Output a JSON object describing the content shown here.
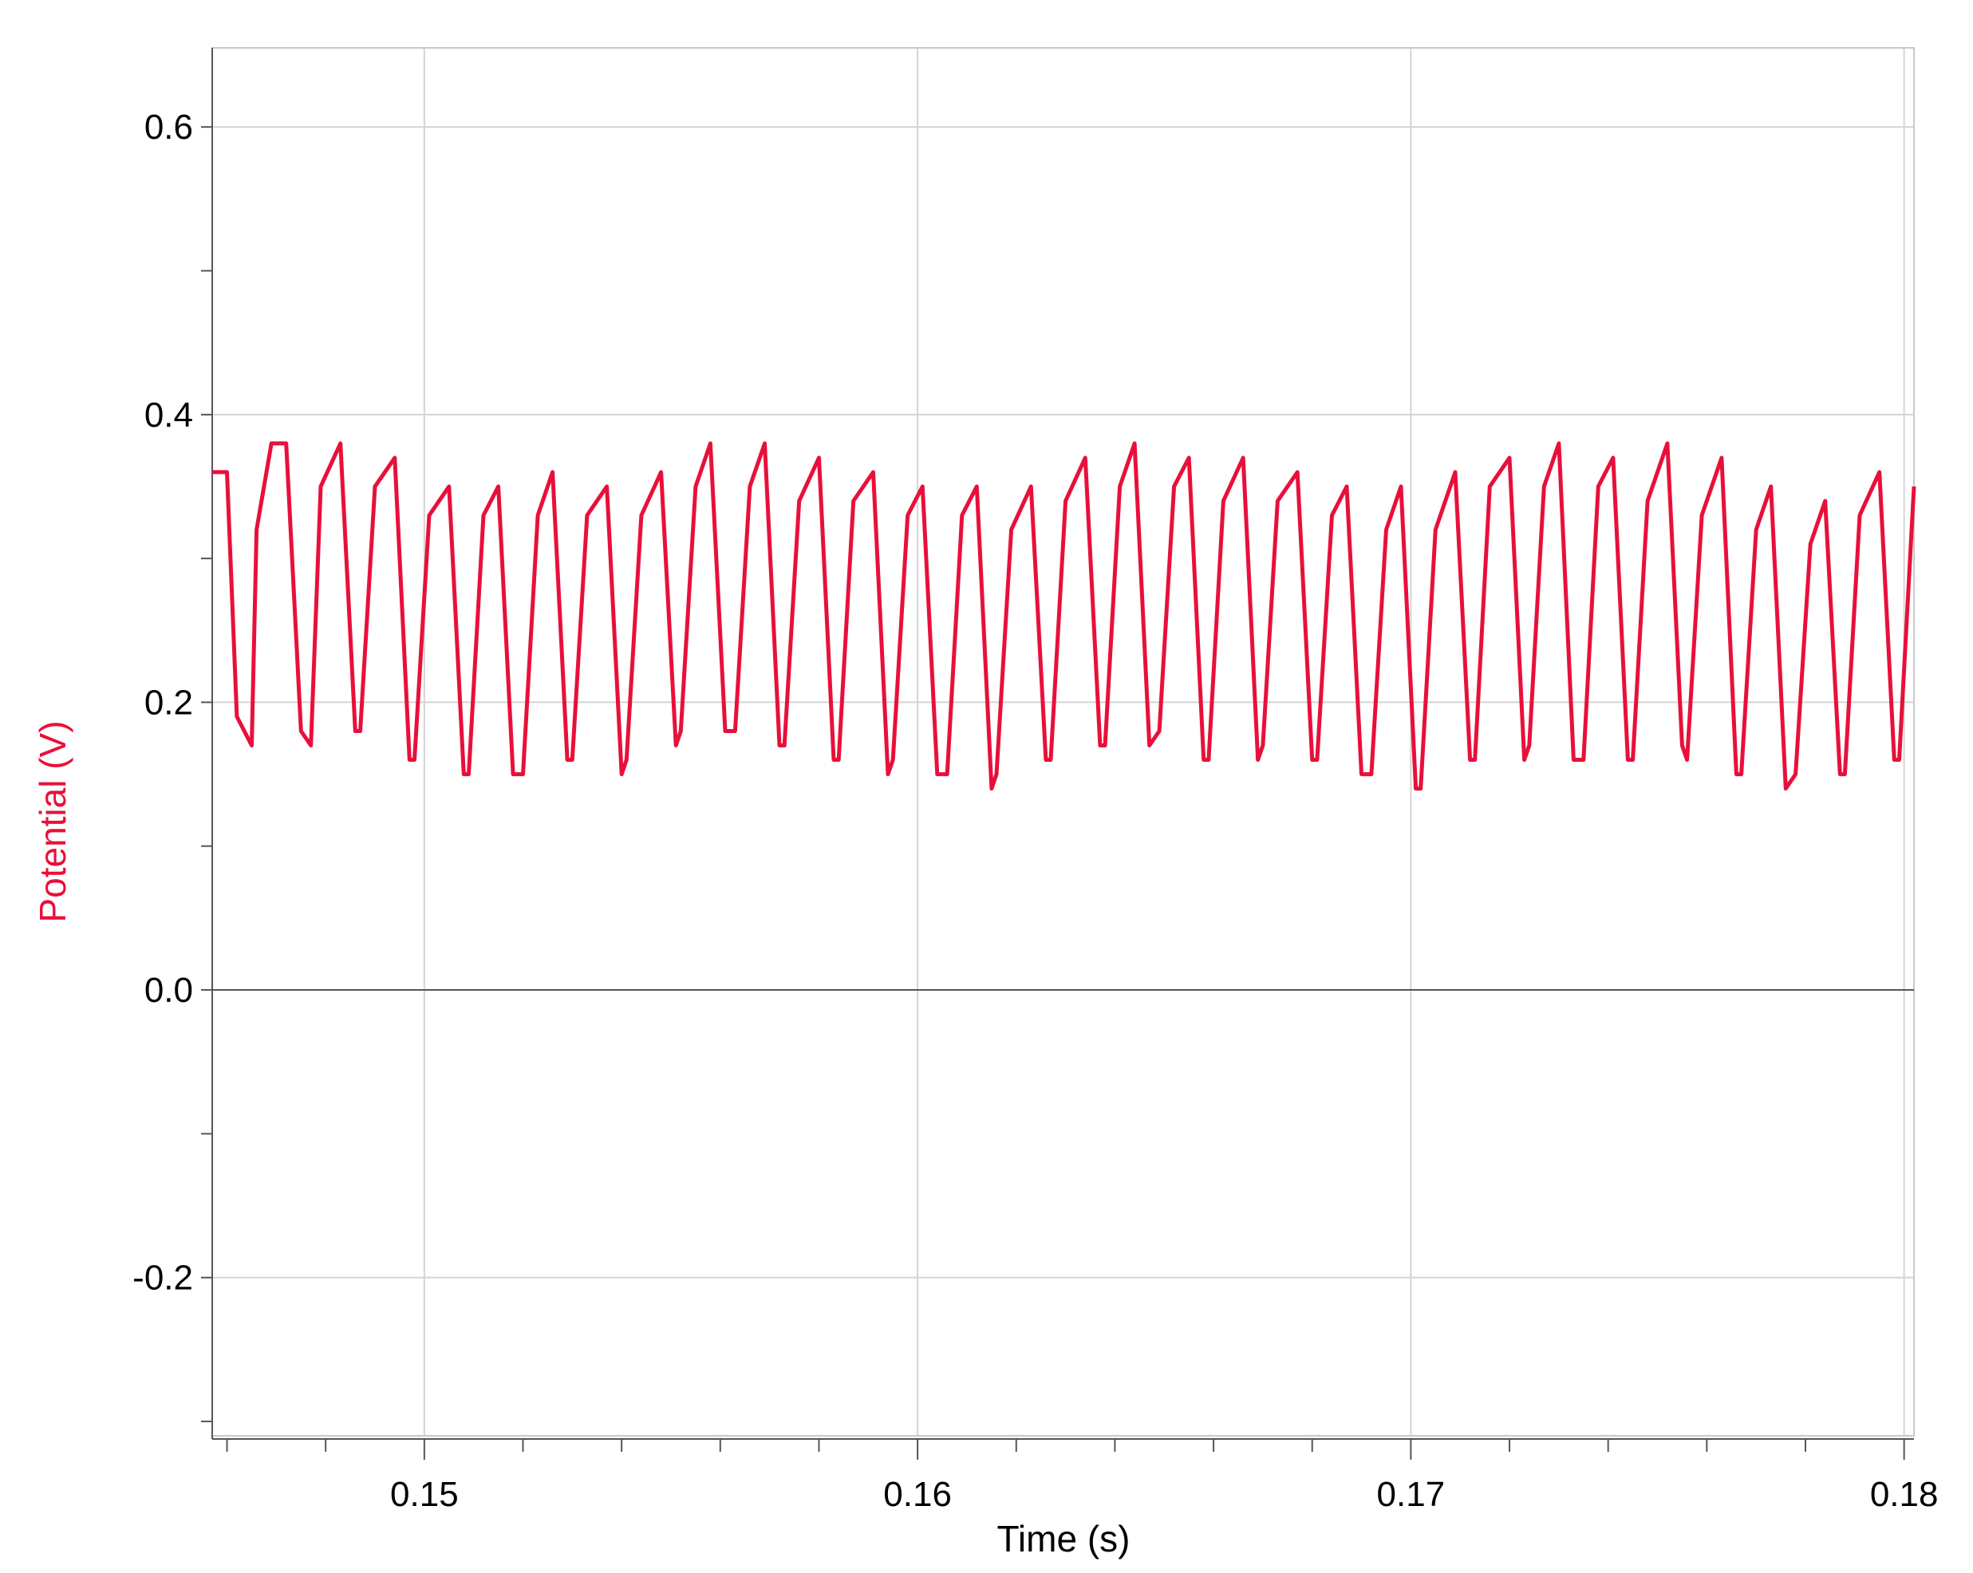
{
  "chart_data": {
    "type": "line",
    "title": "",
    "xlabel": "Time (s)",
    "ylabel": "Potential (V)",
    "xlim": [
      0.1457,
      0.1802
    ],
    "ylim": [
      -0.31,
      0.655
    ],
    "grid": true,
    "x_ticks": [
      {
        "value": 0.15,
        "label": "0.15"
      },
      {
        "value": 0.16,
        "label": "0.16"
      },
      {
        "value": 0.17,
        "label": "0.17"
      },
      {
        "value": 0.18,
        "label": "0.18"
      }
    ],
    "y_ticks": [
      {
        "value": 0.6,
        "label": "0.6"
      },
      {
        "value": 0.4,
        "label": "0.4"
      },
      {
        "value": 0.2,
        "label": "0.2"
      },
      {
        "value": 0.0,
        "label": "0.0"
      },
      {
        "value": -0.2,
        "label": "-0.2"
      }
    ],
    "series_color": "#e8103a",
    "series": [
      {
        "x": [
          0.1457,
          0.146,
          0.1462,
          0.1465,
          0.1466,
          0.1469,
          0.1472,
          0.1475,
          0.1477,
          0.1479,
          0.1483,
          0.1486,
          0.1487,
          0.149,
          0.1494,
          0.1497,
          0.1498,
          0.1501,
          0.1505,
          0.1508,
          0.1509,
          0.1512,
          0.1515,
          0.1518,
          0.152,
          0.1523,
          0.1526,
          0.1529,
          0.153,
          0.1533,
          0.1537,
          0.154,
          0.1541,
          0.1544,
          0.1548,
          0.1551,
          0.1552,
          0.1555,
          0.1558,
          0.1561,
          0.1563,
          0.1566,
          0.1569,
          0.1572,
          0.1573,
          0.1576,
          0.158,
          0.1583,
          0.1584,
          0.1587,
          0.1591,
          0.1594,
          0.1595,
          0.1598,
          0.1601,
          0.1604,
          0.1606,
          0.1609,
          0.1612,
          0.1615,
          0.1616,
          0.1619,
          0.1623,
          0.1626,
          0.1627,
          0.163,
          0.1634,
          0.1637,
          0.1638,
          0.1641,
          0.1644,
          0.1647,
          0.1649,
          0.1652,
          0.1655,
          0.1658,
          0.1659,
          0.1662,
          0.1666,
          0.1669,
          0.167,
          0.1673,
          0.1677,
          0.168,
          0.1681,
          0.1684,
          0.1687,
          0.169,
          0.1692,
          0.1695,
          0.1698,
          0.1701,
          0.1702,
          0.1705,
          0.1709,
          0.1712,
          0.1713,
          0.1716,
          0.172,
          0.1723,
          0.1724,
          0.1727,
          0.173,
          0.1733,
          0.1735,
          0.1738,
          0.1741,
          0.1744,
          0.1745,
          0.1748,
          0.1752,
          0.1755,
          0.1756,
          0.1759,
          0.1763,
          0.1766,
          0.1767,
          0.177,
          0.1773,
          0.1776,
          0.1778,
          0.1781,
          0.1784,
          0.1787,
          0.1788,
          0.1791,
          0.1795,
          0.1798,
          0.1799,
          0.1802
        ],
        "y": [
          0.36,
          0.36,
          0.19,
          0.17,
          0.32,
          0.38,
          0.38,
          0.18,
          0.17,
          0.35,
          0.38,
          0.18,
          0.18,
          0.35,
          0.37,
          0.16,
          0.16,
          0.33,
          0.35,
          0.15,
          0.15,
          0.33,
          0.35,
          0.15,
          0.15,
          0.33,
          0.36,
          0.16,
          0.16,
          0.33,
          0.35,
          0.15,
          0.16,
          0.33,
          0.36,
          0.17,
          0.18,
          0.35,
          0.38,
          0.18,
          0.18,
          0.35,
          0.38,
          0.17,
          0.17,
          0.34,
          0.37,
          0.16,
          0.16,
          0.34,
          0.36,
          0.15,
          0.16,
          0.33,
          0.35,
          0.15,
          0.15,
          0.33,
          0.35,
          0.14,
          0.15,
          0.32,
          0.35,
          0.16,
          0.16,
          0.34,
          0.37,
          0.17,
          0.17,
          0.35,
          0.38,
          0.17,
          0.18,
          0.35,
          0.37,
          0.16,
          0.16,
          0.34,
          0.37,
          0.16,
          0.17,
          0.34,
          0.36,
          0.16,
          0.16,
          0.33,
          0.35,
          0.15,
          0.15,
          0.32,
          0.35,
          0.14,
          0.14,
          0.32,
          0.36,
          0.16,
          0.16,
          0.35,
          0.37,
          0.16,
          0.17,
          0.35,
          0.38,
          0.16,
          0.16,
          0.35,
          0.37,
          0.16,
          0.16,
          0.34,
          0.38,
          0.17,
          0.16,
          0.33,
          0.37,
          0.15,
          0.15,
          0.32,
          0.35,
          0.14,
          0.15,
          0.31,
          0.34,
          0.15,
          0.15,
          0.33,
          0.36,
          0.16,
          0.16,
          0.35
        ]
      }
    ]
  }
}
